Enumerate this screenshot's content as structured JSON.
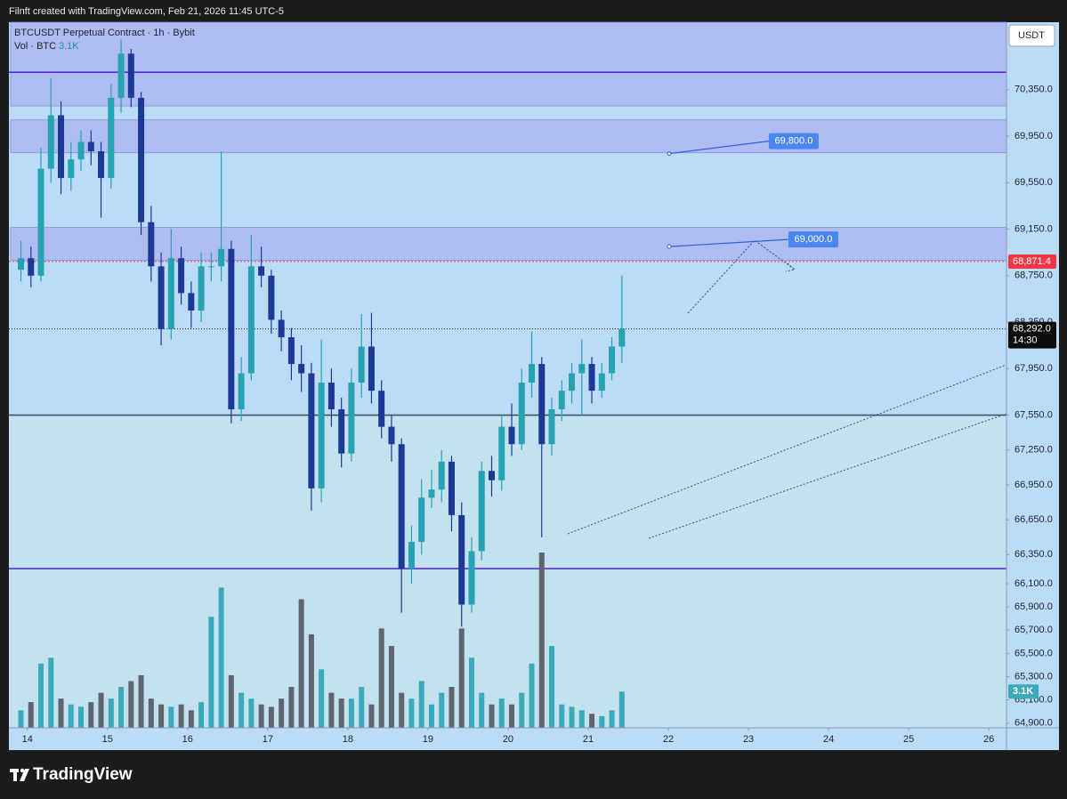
{
  "header": {
    "attribution": "Filnft created with TradingView.com, Feb 21, 2026 11:45 UTC-5"
  },
  "chart_data": {
    "type": "candlestick",
    "title": "BTCUSDT Perpetual Contract · 1h · Bybit",
    "currency": "USDT",
    "x": [
      13.92,
      14.045,
      14.17,
      14.295,
      14.42,
      14.545,
      14.67,
      14.795,
      14.92,
      15.045,
      15.17,
      15.295,
      15.42,
      15.545,
      15.67,
      15.795,
      15.92,
      16.045,
      16.17,
      16.295,
      16.42,
      16.545,
      16.67,
      16.795,
      16.92,
      17.045,
      17.17,
      17.295,
      17.42,
      17.545,
      17.67,
      17.795,
      17.92,
      18.045,
      18.17,
      18.295,
      18.42,
      18.545,
      18.67,
      18.795,
      18.92,
      19.045,
      19.17,
      19.295,
      19.42,
      19.545,
      19.67,
      19.795,
      19.92,
      20.045,
      20.17,
      20.295,
      20.42,
      20.545,
      20.67,
      20.795,
      20.92,
      21.045,
      21.17,
      21.295,
      21.42
    ],
    "open": [
      68800,
      68900,
      68750,
      69670,
      70130,
      69590,
      69750,
      69900,
      69820,
      69590,
      70280,
      70660,
      70280,
      69210,
      68830,
      68290,
      68900,
      68600,
      68450,
      68830,
      68830,
      68980,
      67600,
      67910,
      68830,
      68750,
      68370,
      68220,
      67990,
      67910,
      66920,
      67830,
      67600,
      67220,
      67830,
      68140,
      67760,
      67450,
      67300,
      66230,
      66460,
      66840,
      66910,
      67150,
      66690,
      65920,
      66380,
      67070,
      66990,
      67450,
      67300,
      67830,
      67990,
      67300,
      67600,
      67760,
      67910,
      67990,
      67760,
      67910,
      68140
    ],
    "high": [
      69050,
      69000,
      69850,
      70450,
      70250,
      69900,
      70000,
      70000,
      69900,
      70400,
      70780,
      70700,
      70330,
      69350,
      68950,
      69150,
      69000,
      68700,
      68950,
      68950,
      69820,
      69050,
      68050,
      69100,
      69000,
      68800,
      68450,
      68300,
      68150,
      68000,
      68200,
      67950,
      67700,
      67950,
      68420,
      68430,
      67850,
      67550,
      67350,
      66600,
      67000,
      67080,
      67250,
      67200,
      66800,
      66500,
      67150,
      67200,
      67550,
      67650,
      67950,
      68270,
      68050,
      67700,
      67850,
      68000,
      68200,
      68050,
      68000,
      68220,
      68750
    ],
    "low": [
      68700,
      68650,
      68700,
      69550,
      69450,
      69480,
      69650,
      69700,
      69250,
      69500,
      70150,
      70200,
      69100,
      68700,
      68150,
      68200,
      68500,
      68300,
      68350,
      68700,
      68700,
      67480,
      67500,
      67850,
      68650,
      68250,
      68100,
      67850,
      67750,
      66730,
      66800,
      67450,
      67100,
      67150,
      67700,
      67650,
      67350,
      67150,
      65850,
      66100,
      66350,
      66750,
      66800,
      66550,
      65730,
      65850,
      66300,
      66850,
      66900,
      67200,
      67250,
      67700,
      66500,
      67200,
      67500,
      67650,
      67550,
      67650,
      67700,
      67850,
      68000
    ],
    "close": [
      68900,
      68750,
      69670,
      70130,
      69590,
      69750,
      69900,
      69820,
      69590,
      70280,
      70660,
      70280,
      69210,
      68830,
      68290,
      68900,
      68600,
      68450,
      68830,
      68830,
      68980,
      67600,
      67910,
      68830,
      68750,
      68370,
      68220,
      67990,
      67910,
      66920,
      67830,
      67600,
      67220,
      67830,
      68140,
      67760,
      67450,
      67300,
      66230,
      66460,
      66840,
      66910,
      67150,
      66690,
      65920,
      66380,
      67070,
      66990,
      67450,
      67300,
      67830,
      67990,
      67300,
      67600,
      67760,
      67910,
      67990,
      67760,
      67910,
      68140,
      68292
    ],
    "up_color": "#25a3b3",
    "down_color": "#1c3a95",
    "xlim": [
      13.77,
      26.22
    ],
    "xticks": [
      14,
      15,
      16,
      17,
      18,
      19,
      20,
      21,
      22,
      23,
      24,
      25,
      26
    ],
    "ylim": [
      64860,
      70930
    ],
    "yticks": [
      {
        "value": 70350,
        "label": "70,350.0"
      },
      {
        "value": 69950,
        "label": "69,950.0"
      },
      {
        "value": 69550,
        "label": "69,550.0"
      },
      {
        "value": 69150,
        "label": "69,150.0"
      },
      {
        "value": 68750,
        "label": "68,750.0"
      },
      {
        "value": 68350,
        "label": "68,350.0"
      },
      {
        "value": 67950,
        "label": "67,950.0"
      },
      {
        "value": 67550,
        "label": "67,550.0"
      },
      {
        "value": 67250,
        "label": "67,250.0"
      },
      {
        "value": 66950,
        "label": "66,950.0"
      },
      {
        "value": 66650,
        "label": "66,650.0"
      },
      {
        "value": 66350,
        "label": "66,350.0"
      },
      {
        "value": 66100,
        "label": "66,100.0"
      },
      {
        "value": 65900,
        "label": "65,900.0"
      },
      {
        "value": 65700,
        "label": "65,700.0"
      },
      {
        "value": 65500,
        "label": "65,500.0"
      },
      {
        "value": 65300,
        "label": "65,300.0"
      },
      {
        "value": 65100,
        "label": "65,100.0"
      },
      {
        "value": 64900,
        "label": "64,900.0"
      }
    ],
    "grid": false,
    "last_price": {
      "value": 68292,
      "label": "68,292.0",
      "countdown": "14:30"
    },
    "volume": {
      "label": "Vol · BTC",
      "last_label": "3.1K",
      "up_color": "#3aa9b9",
      "down_color": "#5e6570",
      "values": [
        1500,
        2200,
        5500,
        6000,
        2500,
        2000,
        1800,
        2200,
        3000,
        2500,
        3500,
        4000,
        4500,
        2500,
        2000,
        1800,
        2000,
        1500,
        2200,
        9500,
        12000,
        4500,
        3000,
        2500,
        2000,
        1800,
        2500,
        3500,
        11000,
        8000,
        5000,
        3000,
        2500,
        2500,
        3500,
        2000,
        8500,
        7000,
        3000,
        2500,
        4000,
        2000,
        3000,
        3500,
        8500,
        6000,
        3000,
        2000,
        2500,
        2000,
        3000,
        5500,
        15000,
        7000,
        2000,
        1800,
        1500,
        1200,
        1000,
        1500,
        3100
      ]
    },
    "price_lines": [
      {
        "value": 68871.4,
        "label": "68,871.4",
        "color": "#f23645"
      }
    ],
    "hlines": [
      {
        "value": 70500,
        "color": "#5a2fd2"
      },
      {
        "value": 67550,
        "color": "#3b5566",
        "fill_below": "#c3e1ee"
      },
      {
        "value": 66230,
        "color": "#5a2fd2"
      }
    ],
    "zones": [
      {
        "from": 70210,
        "to": 70930
      },
      {
        "from": 69807,
        "to": 70090
      },
      {
        "from": 68881,
        "to": 69165
      }
    ],
    "zone_color": "#aebcf1",
    "annotations": [
      {
        "x": 22.01,
        "value": 69800,
        "label": "69,800.0"
      },
      {
        "x": 22.01,
        "value": 69000,
        "label": "69,000.0"
      }
    ]
  },
  "footer": {
    "brand": "TradingView"
  }
}
